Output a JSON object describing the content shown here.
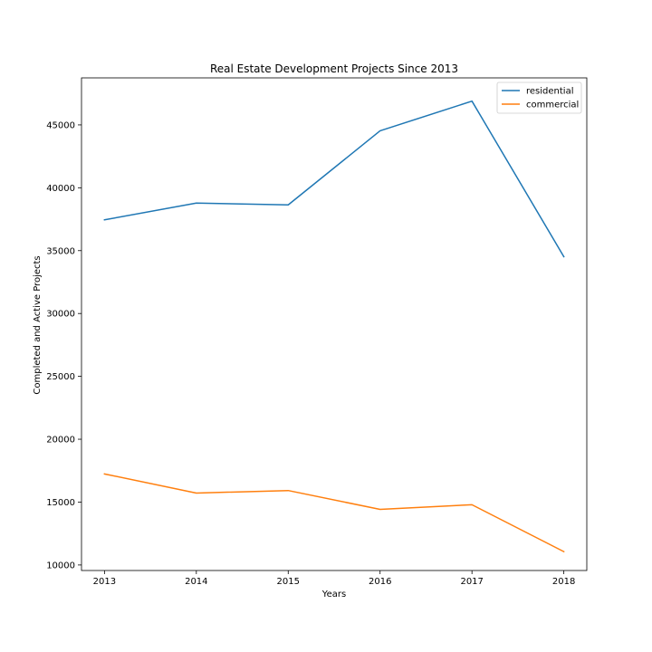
{
  "chart_data": {
    "type": "line",
    "title": "Real Estate Development Projects Since 2013",
    "xlabel": "Years",
    "ylabel": "Completed and Active Projects",
    "x": [
      2013,
      2014,
      2015,
      2016,
      2017,
      2018
    ],
    "xlim": [
      2012.75,
      2018.25
    ],
    "ylim": [
      9560,
      48740
    ],
    "yticks": [
      10000,
      15000,
      20000,
      25000,
      30000,
      35000,
      40000,
      45000
    ],
    "grid": false,
    "legend_position": "top-right",
    "series": [
      {
        "name": "residential",
        "color": "#1f77b4",
        "values": [
          37450,
          38780,
          38640,
          44530,
          46890,
          34520
        ]
      },
      {
        "name": "commercial",
        "color": "#ff7f0e",
        "values": [
          17240,
          15720,
          15920,
          14420,
          14790,
          11060
        ]
      }
    ]
  }
}
